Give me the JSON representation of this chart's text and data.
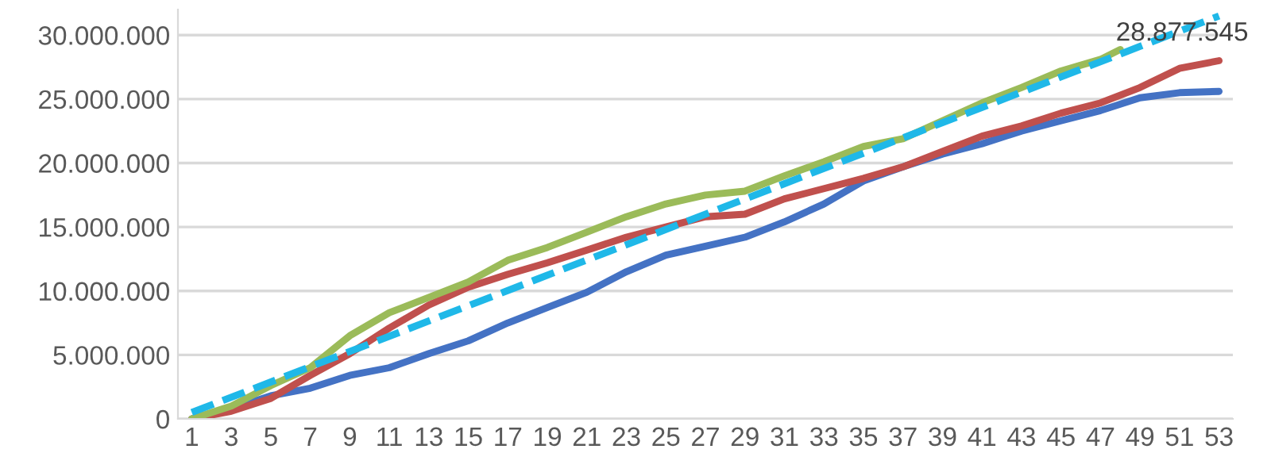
{
  "chart_data": {
    "type": "line",
    "grid": "y",
    "legend": false,
    "xlim": [
      0.3,
      53.7
    ],
    "ylim": [
      0,
      32000000
    ],
    "xticks": [
      1,
      3,
      5,
      7,
      9,
      11,
      13,
      15,
      17,
      19,
      21,
      23,
      25,
      27,
      29,
      31,
      33,
      35,
      37,
      39,
      41,
      43,
      45,
      47,
      49,
      51,
      53
    ],
    "yticks": [
      {
        "value": 0,
        "label": "0"
      },
      {
        "value": 5000000,
        "label": "5.000.000"
      },
      {
        "value": 10000000,
        "label": "10.000.000"
      },
      {
        "value": 15000000,
        "label": "15.000.000"
      },
      {
        "value": 20000000,
        "label": "20.000.000"
      },
      {
        "value": 25000000,
        "label": "25.000.000"
      },
      {
        "value": 30000000,
        "label": "30.000.000"
      }
    ],
    "annotations": [
      {
        "text": "28.877.545",
        "x": 48,
        "y": 28877545
      }
    ],
    "series": [
      {
        "color": "#4472c4",
        "x": [
          1,
          3,
          5,
          7,
          9,
          11,
          13,
          15,
          17,
          19,
          21,
          23,
          25,
          27,
          29,
          31,
          33,
          35,
          37,
          39,
          41,
          43,
          45,
          47,
          49,
          51,
          53
        ],
        "values": [
          0,
          800000,
          1800000,
          2400000,
          3400000,
          4000000,
          5100000,
          6100000,
          7500000,
          8700000,
          9900000,
          11500000,
          12800000,
          13500000,
          14200000,
          15400000,
          16800000,
          18600000,
          19700000,
          20700000,
          21500000,
          22500000,
          23300000,
          24100000,
          25100000,
          25500000,
          25600000
        ]
      },
      {
        "color": "#c0504d",
        "x": [
          1,
          3,
          5,
          7,
          9,
          11,
          13,
          15,
          17,
          19,
          21,
          23,
          25,
          27,
          29,
          31,
          33,
          35,
          37,
          39,
          41,
          43,
          45,
          47,
          49,
          51,
          53
        ],
        "values": [
          0,
          600000,
          1600000,
          3400000,
          5100000,
          7100000,
          8900000,
          10300000,
          11300000,
          12200000,
          13200000,
          14200000,
          15000000,
          15800000,
          16000000,
          17200000,
          18000000,
          18800000,
          19700000,
          20900000,
          22100000,
          22900000,
          23900000,
          24700000,
          25900000,
          27400000,
          28000000
        ]
      },
      {
        "color": "#9bbb59",
        "x": [
          1,
          3,
          5,
          7,
          9,
          11,
          13,
          15,
          17,
          19,
          21,
          23,
          25,
          27,
          29,
          31,
          33,
          35,
          37,
          39,
          41,
          43,
          45,
          47,
          48
        ],
        "values": [
          0,
          1000000,
          2600000,
          4000000,
          6500000,
          8300000,
          9500000,
          10700000,
          12400000,
          13400000,
          14600000,
          15800000,
          16800000,
          17500000,
          17800000,
          19000000,
          20100000,
          21300000,
          21900000,
          23300000,
          24700000,
          25900000,
          27200000,
          28100000,
          28877545
        ]
      },
      {
        "color": "#1fb8e8",
        "line_style": "dashed",
        "x": [
          1,
          53
        ],
        "values": [
          500000,
          31500000
        ]
      }
    ]
  }
}
